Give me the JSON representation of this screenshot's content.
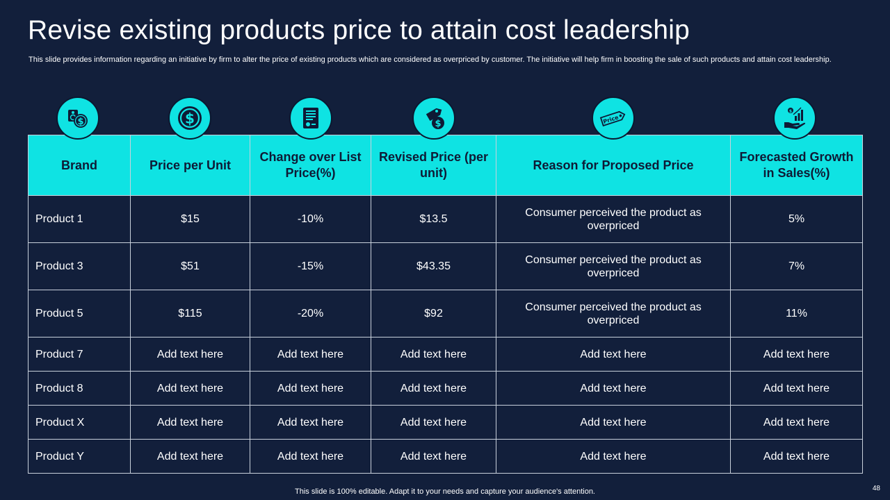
{
  "slide": {
    "title": "Revise existing products price to attain cost leadership",
    "subtitle": "This slide provides information regarding an initiative by firm to alter the price of existing products which are considered as overpriced by customer. The initiative will help firm in boosting the sale of such products and attain cost leadership.",
    "footer": "This slide is 100% editable. Adapt it to your needs and capture your audience's attention.",
    "page_number": "48"
  },
  "colors": {
    "background": "#121f3b",
    "accent": "#0fe3e3",
    "header_text": "#0e1a35"
  },
  "icons": [
    {
      "name": "price-tag-dollar-icon"
    },
    {
      "name": "dollar-coin-icon"
    },
    {
      "name": "price-list-document-icon"
    },
    {
      "name": "dollar-tag-icon"
    },
    {
      "name": "price-label-icon",
      "label": "Price"
    },
    {
      "name": "sales-growth-hand-icon"
    }
  ],
  "table": {
    "headers": [
      "Brand",
      "Price per Unit",
      "Change over List Price(%)",
      "Revised Price (per unit)",
      "Reason for Proposed Price",
      "Forecasted Growth in Sales(%)"
    ],
    "rows": [
      [
        "Product 1",
        "$15",
        "-10%",
        "$13.5",
        "Consumer perceived the product as overpriced",
        "5%"
      ],
      [
        "Product 3",
        "$51",
        "-15%",
        "$43.35",
        "Consumer perceived the product as overpriced",
        "7%"
      ],
      [
        "Product 5",
        "$115",
        "-20%",
        "$92",
        "Consumer perceived the product as overpriced",
        "11%"
      ],
      [
        "Product 7",
        "Add text here",
        "Add text here",
        "Add text here",
        "Add text here",
        "Add text here"
      ],
      [
        "Product 8",
        "Add text here",
        "Add text here",
        "Add text here",
        "Add text here",
        "Add text here"
      ],
      [
        "Product X",
        "Add text here",
        "Add text here",
        "Add text here",
        "Add text here",
        "Add text here"
      ],
      [
        "Product Y",
        "Add text here",
        "Add text here",
        "Add text here",
        "Add text here",
        "Add text here"
      ]
    ]
  }
}
